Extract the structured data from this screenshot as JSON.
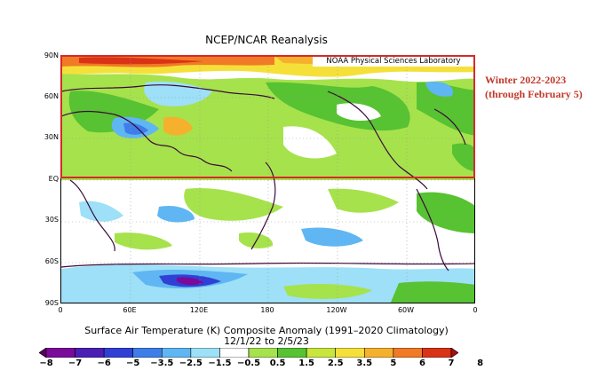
{
  "title": "NCEP/NCAR Reanalysis",
  "credit": "NOAA Physical Sciences Laboratory",
  "annotation": {
    "line1": "Winter 2022-2023",
    "line2": "(through February 5)"
  },
  "map": {
    "lat_labels": [
      "90N",
      "60N",
      "30N",
      "EQ",
      "30S",
      "60S",
      "90S"
    ],
    "lon_labels": [
      "0",
      "60E",
      "120E",
      "180",
      "120W",
      "60W",
      "0"
    ]
  },
  "caption": {
    "line1": "Surface Air Temperature (K) Composite Anomaly (1991–2020 Climatology)",
    "line2": "12/1/22   to 2/5/23"
  },
  "colorbar": {
    "labels": [
      "−8",
      "−7",
      "−6",
      "−5",
      "−3.5",
      "−2.5",
      "−1.5",
      "−0.5",
      "0.5",
      "1.5",
      "2.5",
      "3.5",
      "5",
      "6",
      "7",
      "8"
    ],
    "colors": [
      "#5b005b",
      "#7a0a9a",
      "#4b1fb5",
      "#3040d4",
      "#3f7ee8",
      "#5fb6f2",
      "#9de0f7",
      "#ffffff",
      "#a6e24c",
      "#57c232",
      "#c8e63c",
      "#f5e03a",
      "#f5b12d",
      "#f07a25",
      "#d93316",
      "#a80f12"
    ]
  }
}
